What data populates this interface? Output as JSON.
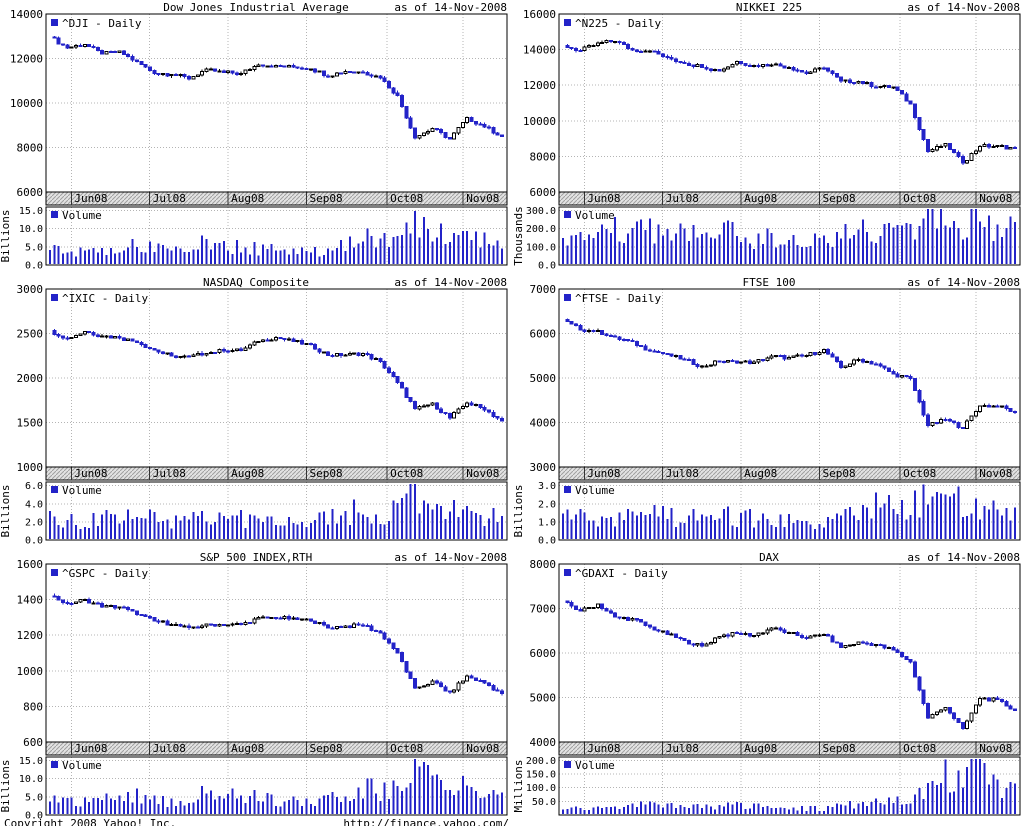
{
  "footer": {
    "copyright": "Copyright 2008 Yahoo! Inc.",
    "url": "http://finance.yahoo.com/"
  },
  "x_axis": {
    "labels": [
      "Jun08",
      "Jul08",
      "Aug08",
      "Sep08",
      "Oct08",
      "Nov08"
    ],
    "positions": [
      0.055,
      0.225,
      0.395,
      0.565,
      0.74,
      0.905
    ]
  },
  "colors": {
    "candle_down": "#2323c8",
    "candle_up_fill": "#ffffff",
    "outline": "#000000",
    "volume_bar": "#2323c8",
    "grid": "#b4b4b4",
    "band_bg": "#e3e3e3",
    "band_hatch": "#a0a0a0"
  },
  "chart_data": [
    {
      "type": "candlestick+volume",
      "title": "Dow Jones Industrial Average",
      "as_of": "as of 14-Nov-2008",
      "legend": "^DJI - Daily",
      "volume_legend": "Volume",
      "volume_unit": "Billions",
      "ylim": [
        6000,
        14000
      ],
      "y_ticks": [
        6000,
        8000,
        10000,
        12000,
        14000
      ],
      "volume_ticks": [
        0,
        5,
        10,
        15
      ],
      "volume_max": 15.9,
      "weekly_closes": [
        12987,
        12480,
        12638,
        12210,
        12307,
        11843,
        11346,
        11289,
        11101,
        11497,
        11370,
        11326,
        11734,
        11660,
        11628,
        11544,
        11221,
        11422,
        11388,
        11143,
        10325,
        8451,
        8852,
        8379,
        9325,
        8943,
        8497
      ],
      "weekly_volumes": [
        3.9,
        3.6,
        3.4,
        4.1,
        4.4,
        5.1,
        4.6,
        3.2,
        4.8,
        5.9,
        5.6,
        5.0,
        4.6,
        4.1,
        3.8,
        3.5,
        4.3,
        5.8,
        7.8,
        6.2,
        7.0,
        12.2,
        9.8,
        8.6,
        8.0,
        6.2,
        6.6
      ]
    },
    {
      "type": "candlestick+volume",
      "title": "NIKKEI 225",
      "as_of": "as of 14-Nov-2008",
      "legend": "^N225 - Daily",
      "volume_legend": "Volume",
      "volume_unit": "Thousands",
      "ylim": [
        6000,
        16000
      ],
      "y_ticks": [
        6000,
        8000,
        10000,
        12000,
        14000,
        16000
      ],
      "volume_ticks": [
        0,
        100,
        200,
        300
      ],
      "volume_max": 318,
      "weekly_closes": [
        14219,
        13943,
        14339,
        14489,
        13973,
        13942,
        13544,
        13237,
        13039,
        12803,
        13334,
        13094,
        13168,
        13020,
        12666,
        12989,
        12212,
        12215,
        11921,
        11894,
        10938,
        8276,
        8694,
        7649,
        8577,
        8583,
        8463
      ],
      "weekly_volumes": [
        175,
        160,
        150,
        190,
        180,
        200,
        185,
        150,
        160,
        175,
        165,
        150,
        140,
        130,
        125,
        120,
        155,
        175,
        210,
        190,
        205,
        280,
        250,
        235,
        255,
        225,
        205
      ]
    },
    {
      "type": "candlestick+volume",
      "title": "NASDAQ Composite",
      "as_of": "as of 14-Nov-2008",
      "legend": "^IXIC - Daily",
      "volume_legend": "Volume",
      "volume_unit": "Billions",
      "ylim": [
        1000,
        3000
      ],
      "y_ticks": [
        1000,
        1500,
        2000,
        2500,
        3000
      ],
      "volume_ticks": [
        0,
        2,
        4,
        6
      ],
      "volume_max": 6.4,
      "weekly_closes": [
        2528,
        2445,
        2523,
        2474,
        2454,
        2406,
        2316,
        2245,
        2239,
        2282,
        2311,
        2311,
        2414,
        2453,
        2414,
        2368,
        2256,
        2261,
        2274,
        2183,
        1947,
        1650,
        1711,
        1552,
        1721,
        1647,
        1517
      ],
      "weekly_volumes": [
        2.2,
        2.1,
        2.0,
        2.3,
        2.4,
        2.7,
        2.5,
        1.7,
        2.4,
        2.9,
        2.6,
        2.4,
        2.2,
        2.1,
        2.0,
        1.9,
        2.3,
        2.7,
        3.5,
        2.9,
        3.1,
        5.2,
        4.2,
        3.5,
        3.1,
        2.5,
        2.7
      ]
    },
    {
      "type": "candlestick+volume",
      "title": "FTSE 100",
      "as_of": "as of 14-Nov-2008",
      "legend": "^FTSE - Daily",
      "volume_legend": "Volume",
      "volume_unit": "Billions",
      "ylim": [
        3000,
        7000
      ],
      "y_ticks": [
        3000,
        4000,
        5000,
        6000,
        7000
      ],
      "volume_ticks": [
        0,
        1,
        2,
        3
      ],
      "volume_max": 3.2,
      "weekly_closes": [
        6304,
        6087,
        6054,
        5906,
        5803,
        5621,
        5530,
        5413,
        5262,
        5376,
        5352,
        5355,
        5489,
        5455,
        5506,
        5637,
        5240,
        5417,
        5311,
        5089,
        4980,
        3932,
        4063,
        3883,
        4377,
        4365,
        4233
      ],
      "weekly_volumes": [
        1.3,
        1.2,
        1.1,
        1.3,
        1.4,
        1.6,
        1.5,
        1.1,
        1.3,
        1.5,
        1.3,
        1.2,
        1.1,
        1.0,
        0.9,
        0.9,
        1.3,
        1.5,
        2.0,
        1.7,
        1.8,
        2.7,
        2.3,
        2.1,
        2.0,
        1.6,
        1.7
      ]
    },
    {
      "type": "candlestick+volume",
      "title": "S&P 500 INDEX,RTH",
      "as_of": "as of 14-Nov-2008",
      "legend": "^GSPC - Daily",
      "volume_legend": "Volume",
      "volume_unit": "Billions",
      "ylim": [
        600,
        1600
      ],
      "y_ticks": [
        600,
        800,
        1000,
        1200,
        1400,
        1600
      ],
      "volume_ticks": [
        0,
        5,
        10,
        15
      ],
      "volume_max": 15.9,
      "weekly_closes": [
        1425,
        1376,
        1400,
        1361,
        1360,
        1318,
        1280,
        1263,
        1239,
        1260,
        1258,
        1260,
        1296,
        1298,
        1292,
        1283,
        1242,
        1252,
        1255,
        1213,
        1099,
        899,
        940,
        877,
        969,
        931,
        873
      ],
      "weekly_volumes": [
        4.0,
        3.7,
        3.5,
        4.2,
        4.5,
        5.2,
        4.7,
        3.3,
        4.9,
        6.0,
        5.7,
        5.1,
        4.7,
        4.2,
        3.9,
        3.6,
        4.4,
        5.9,
        8.0,
        6.3,
        7.1,
        12.0,
        9.9,
        8.7,
        8.1,
        6.3,
        6.7
      ]
    },
    {
      "type": "candlestick+volume",
      "title": "DAX",
      "as_of": "as of 14-Nov-2008",
      "legend": "^GDAXI - Daily",
      "volume_legend": "Volume",
      "volume_unit": "Millions",
      "ylim": [
        4000,
        8000
      ],
      "y_ticks": [
        4000,
        5000,
        6000,
        7000,
        8000
      ],
      "volume_ticks": [
        50,
        100,
        150,
        200
      ],
      "volume_max": 212,
      "weekly_closes": [
        7157,
        6944,
        7096,
        6804,
        6765,
        6578,
        6422,
        6272,
        6153,
        6383,
        6436,
        6396,
        6561,
        6446,
        6342,
        6422,
        6127,
        6235,
        6189,
        6063,
        5797,
        4544,
        4781,
        4295,
        4987,
        4938,
        4710
      ],
      "weekly_volumes": [
        28,
        26,
        24,
        30,
        32,
        38,
        34,
        25,
        30,
        36,
        33,
        30,
        28,
        26,
        25,
        24,
        35,
        42,
        60,
        48,
        55,
        95,
        150,
        120,
        200,
        110,
        90
      ]
    }
  ]
}
